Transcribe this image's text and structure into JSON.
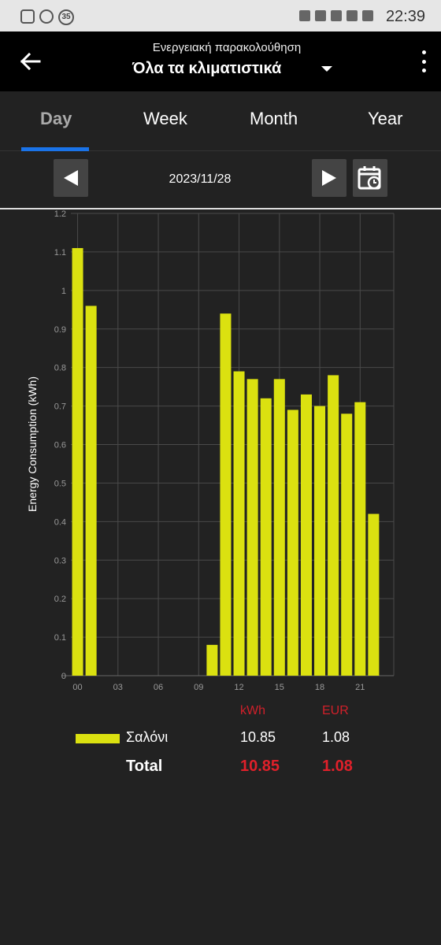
{
  "status_bar": {
    "time": "22:39",
    "badge": "35"
  },
  "app_bar": {
    "subtitle": "Ενεργειακή παρακολούθηση",
    "title": "Όλα τα κλιματιστικά"
  },
  "tabs": [
    {
      "label": "Day",
      "active": true
    },
    {
      "label": "Week",
      "active": false
    },
    {
      "label": "Month",
      "active": false
    },
    {
      "label": "Year",
      "active": false
    }
  ],
  "date_nav": {
    "date": "2023/11/28"
  },
  "colors": {
    "bar": "#dbe110",
    "accent": "#1a73e8",
    "highlight": "#e0202a"
  },
  "chart_data": {
    "type": "bar",
    "ylabel": "Energy Consumption (kWh)",
    "ylim": [
      0,
      1.2
    ],
    "yticks": [
      "0",
      "0.1",
      "0.2",
      "0.3",
      "0.4",
      "0.5",
      "0.6",
      "0.7",
      "0.8",
      "0.9",
      "1",
      "1.1",
      "1.2"
    ],
    "xticks": [
      "00",
      "03",
      "06",
      "09",
      "12",
      "15",
      "18",
      "21"
    ],
    "categories": [
      "00",
      "01",
      "02",
      "03",
      "04",
      "05",
      "06",
      "07",
      "08",
      "09",
      "10",
      "11",
      "12",
      "13",
      "14",
      "15",
      "16",
      "17",
      "18",
      "19",
      "20",
      "21",
      "22",
      "23"
    ],
    "series": [
      {
        "name": "Σαλόνι",
        "values": [
          1.11,
          0.96,
          0,
          0,
          0,
          0,
          0,
          0,
          0,
          0,
          0.08,
          0.94,
          0.79,
          0.77,
          0.72,
          0.77,
          0.69,
          0.73,
          0.7,
          0.78,
          0.68,
          0.71,
          0.42,
          0
        ]
      }
    ],
    "grid": true
  },
  "summary": {
    "col_kwh": "kWh",
    "col_eur": "EUR",
    "rows": [
      {
        "name": "Σαλόνι",
        "kwh": "10.85",
        "eur": "1.08"
      }
    ],
    "total_label": "Total",
    "total_kwh": "10.85",
    "total_eur": "1.08"
  }
}
